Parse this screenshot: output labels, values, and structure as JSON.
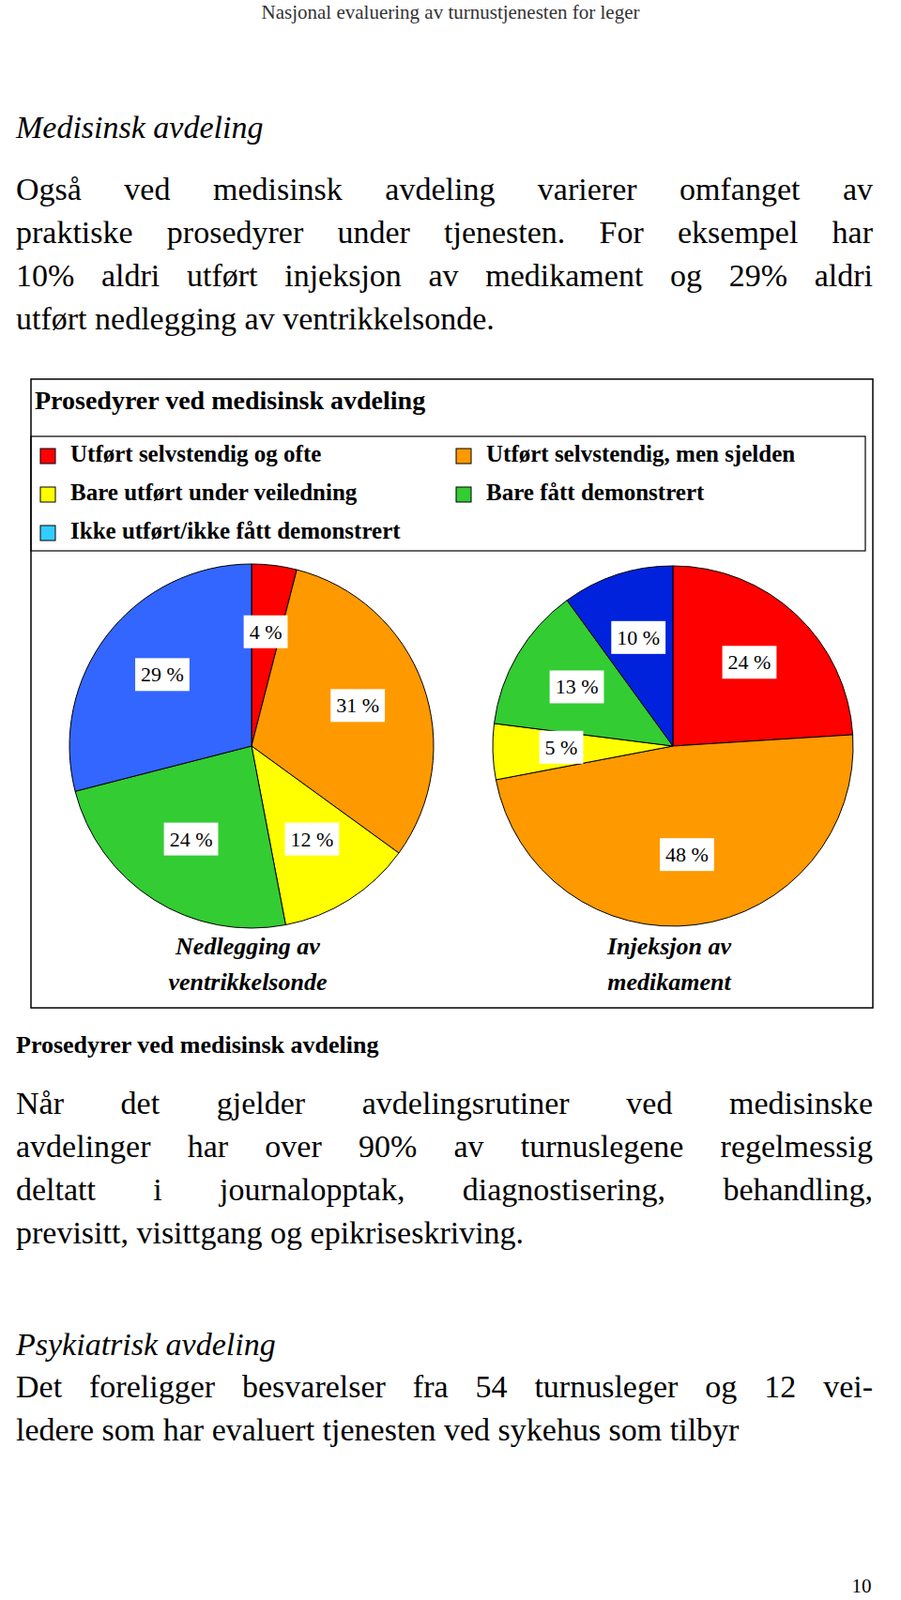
{
  "document": {
    "running_title": "Nasjonal evaluering av turnustjenesten for leger",
    "section_1_heading": "Medisinsk avdeling",
    "paragraph_1": [
      "Også ved medisinsk avdeling varierer omfanget av",
      "praktiske prosedyrer under tjenesten. For eksempel har",
      "10% aldri utført injeksjon av medikament og 29% aldri",
      "utført nedlegging av ventrikkelsonde."
    ],
    "figure_caption": "Prosedyrer ved medisinsk avdeling",
    "paragraph_2": [
      "Når det gjelder avdelingsrutiner ved medisinske",
      "avdelinger har over 90% av turnuslegene regelmessig",
      "deltatt i journalopptak, diagnostisering, behandling,",
      "previsitt, visittgang og epikriseskriving."
    ],
    "section_2_heading": "Psykiatrisk avdeling",
    "paragraph_3": [
      "Det foreligger besvarelser fra 54 turnusleger og 12 vei-",
      "ledere som har evaluert tjenesten ved sykehus som tilbyr"
    ],
    "page_number": "10"
  },
  "figure": {
    "title": "Prosedyrer ved medisinsk avdeling",
    "legend_items": [
      {
        "label": "Utført selvstendig og ofte",
        "color": "#ff0000"
      },
      {
        "label": "Utført selvstendig, men sjelden",
        "color": "#ff9900"
      },
      {
        "label": "Bare utført under veiledning",
        "color": "#ffff00"
      },
      {
        "label": "Bare fått demonstrert",
        "color": "#33cc33"
      },
      {
        "label": "Ikke utført/ikke fått demonstrert",
        "color": "#33ccff"
      }
    ]
  },
  "chart_data": [
    {
      "type": "pie",
      "title": [
        "Nedlegging av",
        "ventrikkelsonde"
      ],
      "values": [
        4,
        31,
        12,
        24,
        29
      ],
      "value_labels": [
        "4 %",
        "31 %",
        "12 %",
        "24 %",
        "29 %"
      ],
      "colors": [
        "#ff0000",
        "#ff9900",
        "#ffff00",
        "#33cc33",
        "#3366ff"
      ],
      "data_labels": true
    },
    {
      "type": "pie",
      "title": [
        "Injeksjon av",
        "medikament"
      ],
      "values": [
        24,
        48,
        5,
        13,
        10
      ],
      "value_labels": [
        "24 %",
        "48 %",
        "5 %",
        "13 %",
        "10 %"
      ],
      "colors": [
        "#ff0000",
        "#ff9900",
        "#ffff00",
        "#33cc33",
        "#0022dd"
      ],
      "data_labels": true
    }
  ]
}
